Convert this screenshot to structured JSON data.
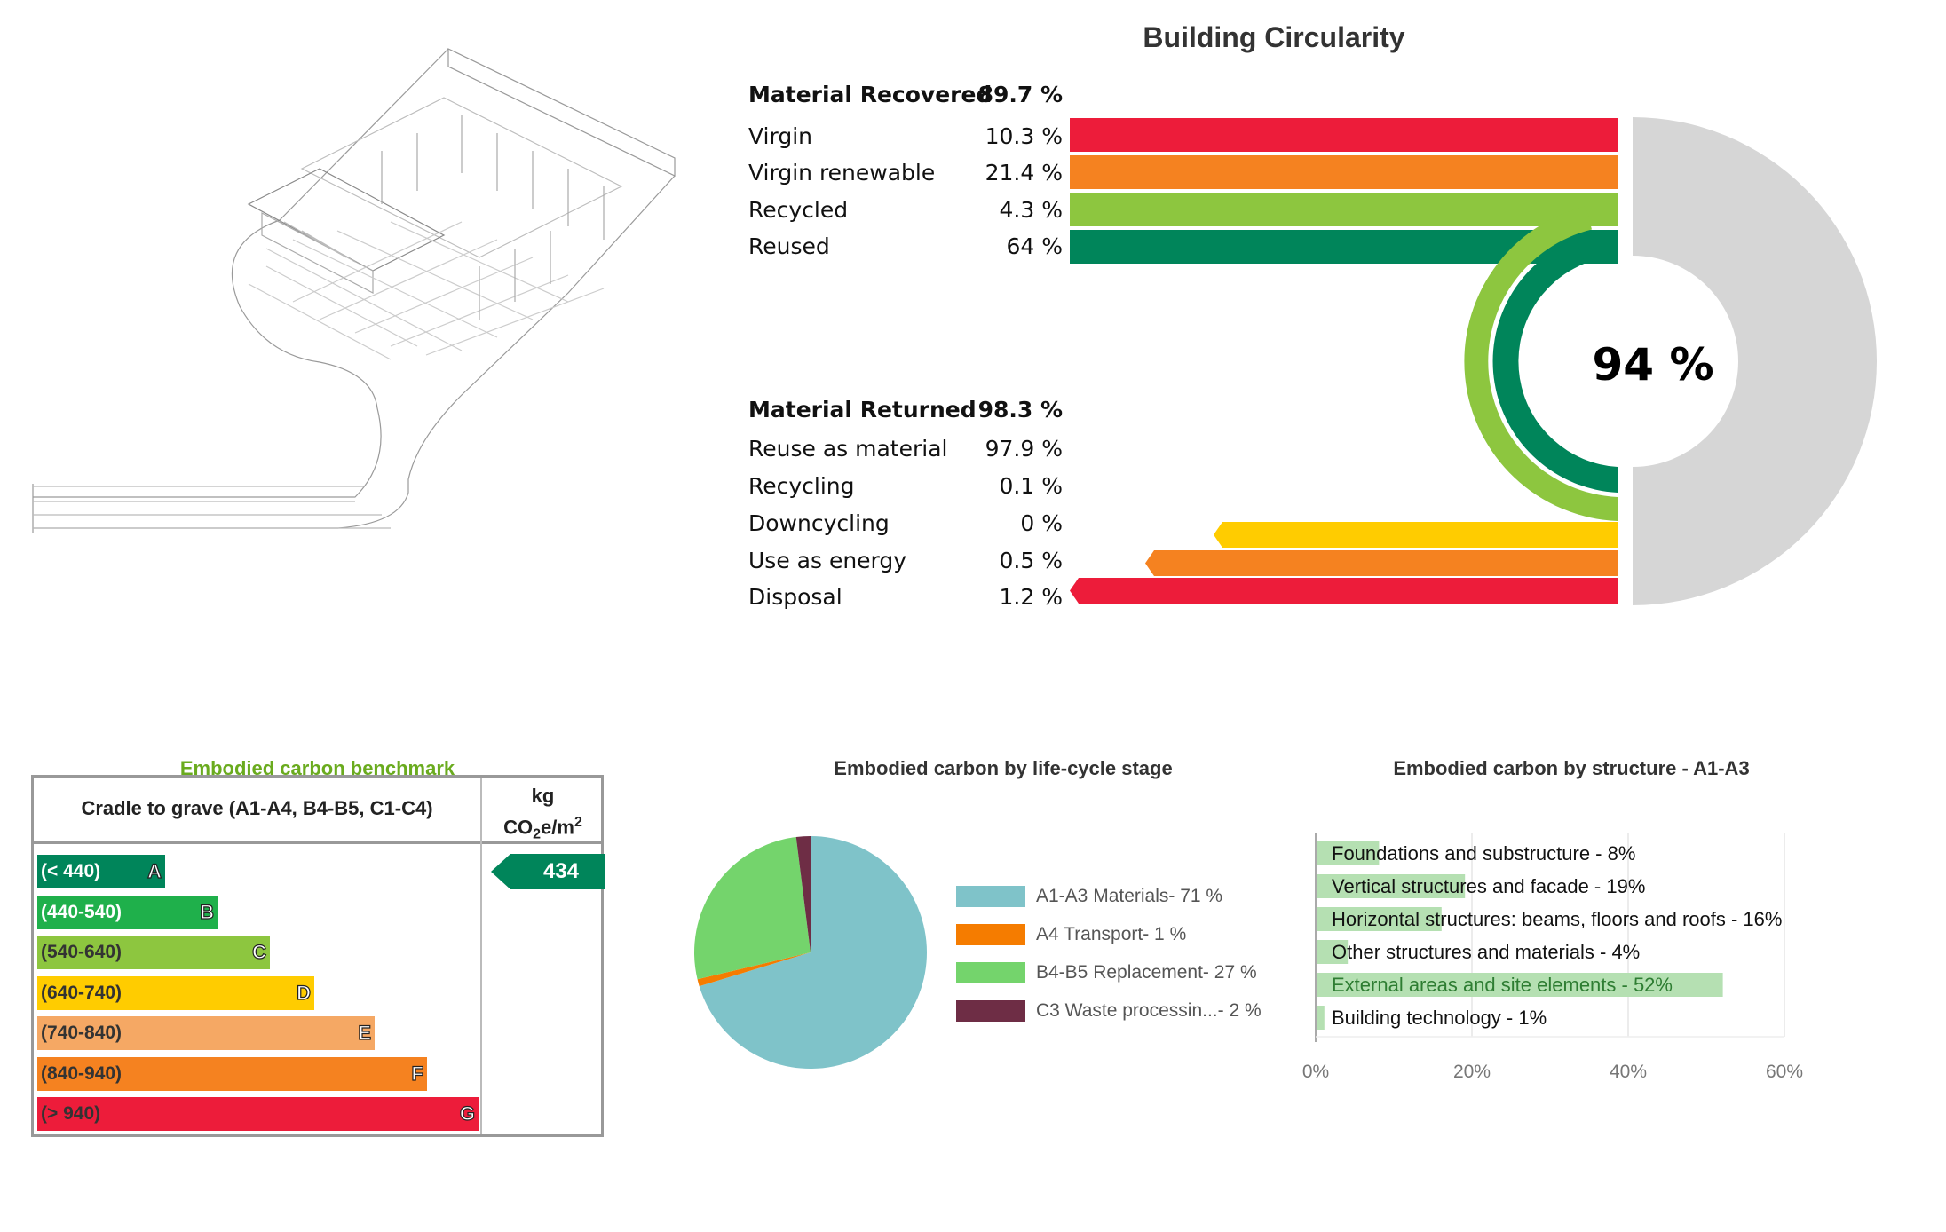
{
  "circularity": {
    "title": "Building Circularity",
    "score": "94 %",
    "recovered": {
      "label": "Material Recovered",
      "total": "89.7 %",
      "rows": [
        {
          "label": "Virgin",
          "value": "10.3 %",
          "color": "#ed1c3a"
        },
        {
          "label": "Virgin renewable",
          "value": "21.4 %",
          "color": "#f58220"
        },
        {
          "label": "Recycled",
          "value": "4.3 %",
          "color": "#8dc63f"
        },
        {
          "label": "Reused",
          "value": "64 %",
          "color": "#00855a"
        }
      ]
    },
    "returned": {
      "label": "Material Returned",
      "total": "98.3 %",
      "rows": [
        {
          "label": "Reuse as material",
          "value": "97.9 %",
          "color": "#00855a"
        },
        {
          "label": "Recycling",
          "value": "0.1 %",
          "color": "#8dc63f"
        },
        {
          "label": "Downcycling",
          "value": "0 %",
          "color": "#ffcc00"
        },
        {
          "label": "Use as energy",
          "value": "0.5 %",
          "color": "#f58220"
        },
        {
          "label": "Disposal",
          "value": "1.2 %",
          "color": "#ed1c3a"
        }
      ]
    },
    "ring_color": "#d6d6d6"
  },
  "benchmark": {
    "title": "Embodied carbon benchmark",
    "header": "Cradle to grave (A1-A4, B4-B5, C1-C4)",
    "unit_line1": "kg",
    "unit_co": "CO",
    "unit_sub": "2",
    "unit_rest": "e/m",
    "unit_sup": "2",
    "score": "434",
    "score_color": "#00855a",
    "bands": [
      {
        "range": "(< 440)",
        "letter": "A",
        "color": "#00855a"
      },
      {
        "range": "(440-540)",
        "letter": "B",
        "color": "#1fb04b"
      },
      {
        "range": "(540-640)",
        "letter": "C",
        "color": "#8dc63f"
      },
      {
        "range": "(640-740)",
        "letter": "D",
        "color": "#ffcc00"
      },
      {
        "range": "(740-840)",
        "letter": "E",
        "color": "#f5a864"
      },
      {
        "range": "(840-940)",
        "letter": "F",
        "color": "#f58220"
      },
      {
        "range": "(> 940)",
        "letter": "G",
        "color": "#ed1c3a"
      }
    ]
  },
  "chart_data": [
    {
      "type": "pie",
      "title": "Embodied carbon by life-cycle stage",
      "legend_position": "right",
      "series": [
        {
          "name": "A1-A3 Materials",
          "label": "A1-A3 Materials- 71 %",
          "value": 71,
          "color": "#7fc3c9"
        },
        {
          "name": "A4 Transport",
          "label": "A4 Transport- 1 %",
          "value": 1,
          "color": "#f57c00"
        },
        {
          "name": "B4-B5 Replacement",
          "label": "B4-B5 Replacement- 27 %",
          "value": 27,
          "color": "#74d46c"
        },
        {
          "name": "C3 Waste processing",
          "label": "C3 Waste processin...- 2 %",
          "value": 2,
          "color": "#6e2d45"
        }
      ]
    },
    {
      "type": "bar",
      "orientation": "horizontal",
      "title": "Embodied carbon by structure - A1-A3",
      "categories": [
        "Foundations and substructure - 8%",
        "Vertical structures and facade - 19%",
        "Horizontal structures: beams, floors and roofs - 16%",
        "Other structures and materials - 4%",
        "External areas and site elements - 52%",
        "Building technology - 1%"
      ],
      "values": [
        8,
        19,
        16,
        4,
        52,
        1
      ],
      "xlim": [
        0,
        60
      ],
      "xticks": [
        "0%",
        "20%",
        "40%",
        "60%"
      ],
      "grid": true,
      "bar_color": "#b5e0b2"
    }
  ]
}
